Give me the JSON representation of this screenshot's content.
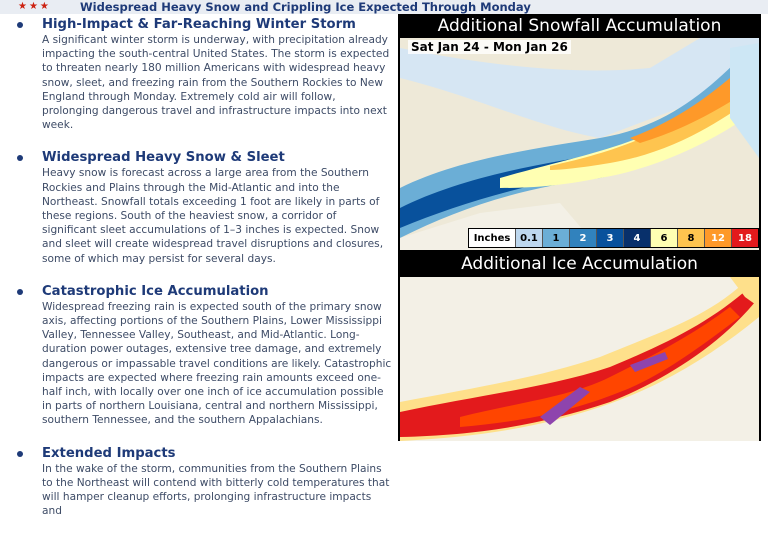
{
  "header": {
    "title": "Widespread Heavy Snow and Crippling Ice Expected Through Monday"
  },
  "sections": [
    {
      "heading": "High-Impact & Far-Reaching Winter Storm",
      "body": "A significant winter storm is underway, with precipitation already impacting the south-central United States. The storm is expected to threaten nearly 180 million Americans with widespread heavy snow, sleet, and freezing rain from the Southern Rockies to New England through Monday. Extremely cold air will follow, prolonging dangerous travel and infrastructure impacts into next week."
    },
    {
      "heading": "Widespread Heavy Snow & Sleet",
      "body": "Heavy snow is forecast across a large area from the Southern Rockies and Plains through the Mid-Atlantic and into the Northeast. Snowfall totals exceeding 1 foot are likely in parts of these regions. South of the heaviest snow, a corridor of significant sleet accumulations of 1–3 inches is expected. Snow and sleet will create widespread travel disruptions and closures, some of which may persist for several days."
    },
    {
      "heading": "Catastrophic Ice Accumulation",
      "body": "Widespread freezing rain is expected south of the primary snow axis, affecting portions of the Southern Plains, Lower Mississippi Valley, Tennessee Valley, Southeast, and Mid-Atlantic. Long-duration power outages, extensive tree damage, and extremely dangerous or impassable travel conditions are likely. Catastrophic impacts are expected where freezing rain amounts exceed one-half inch, with locally over one inch of ice accumulation possible in parts of northern Louisiana, central and northern Mississippi, southern Tennessee, and the southern Appalachians."
    },
    {
      "heading": "Extended Impacts",
      "body": "In the wake of the storm, communities from the Southern Plains to the Northeast will contend with bitterly cold temperatures that will hamper cleanup efforts, prolonging infrastructure impacts and"
    }
  ],
  "snow_map": {
    "title": "Additional Snowfall Accumulation",
    "date_range": "Sat Jan 24 - Mon Jan 26",
    "legend": {
      "label": "Inches",
      "bins": [
        {
          "v": "0.1",
          "c": "#bdd7ee"
        },
        {
          "v": "1",
          "c": "#6baed6"
        },
        {
          "v": "2",
          "c": "#3182bd"
        },
        {
          "v": "3",
          "c": "#08519c"
        },
        {
          "v": "4",
          "c": "#08306b"
        },
        {
          "v": "6",
          "c": "#ffffb2"
        },
        {
          "v": "8",
          "c": "#fec44f"
        },
        {
          "v": "12",
          "c": "#fe9929"
        },
        {
          "v": "18",
          "c": "#e31a1c"
        }
      ]
    }
  },
  "ice_map": {
    "title": "Additional Ice Accumulation"
  }
}
